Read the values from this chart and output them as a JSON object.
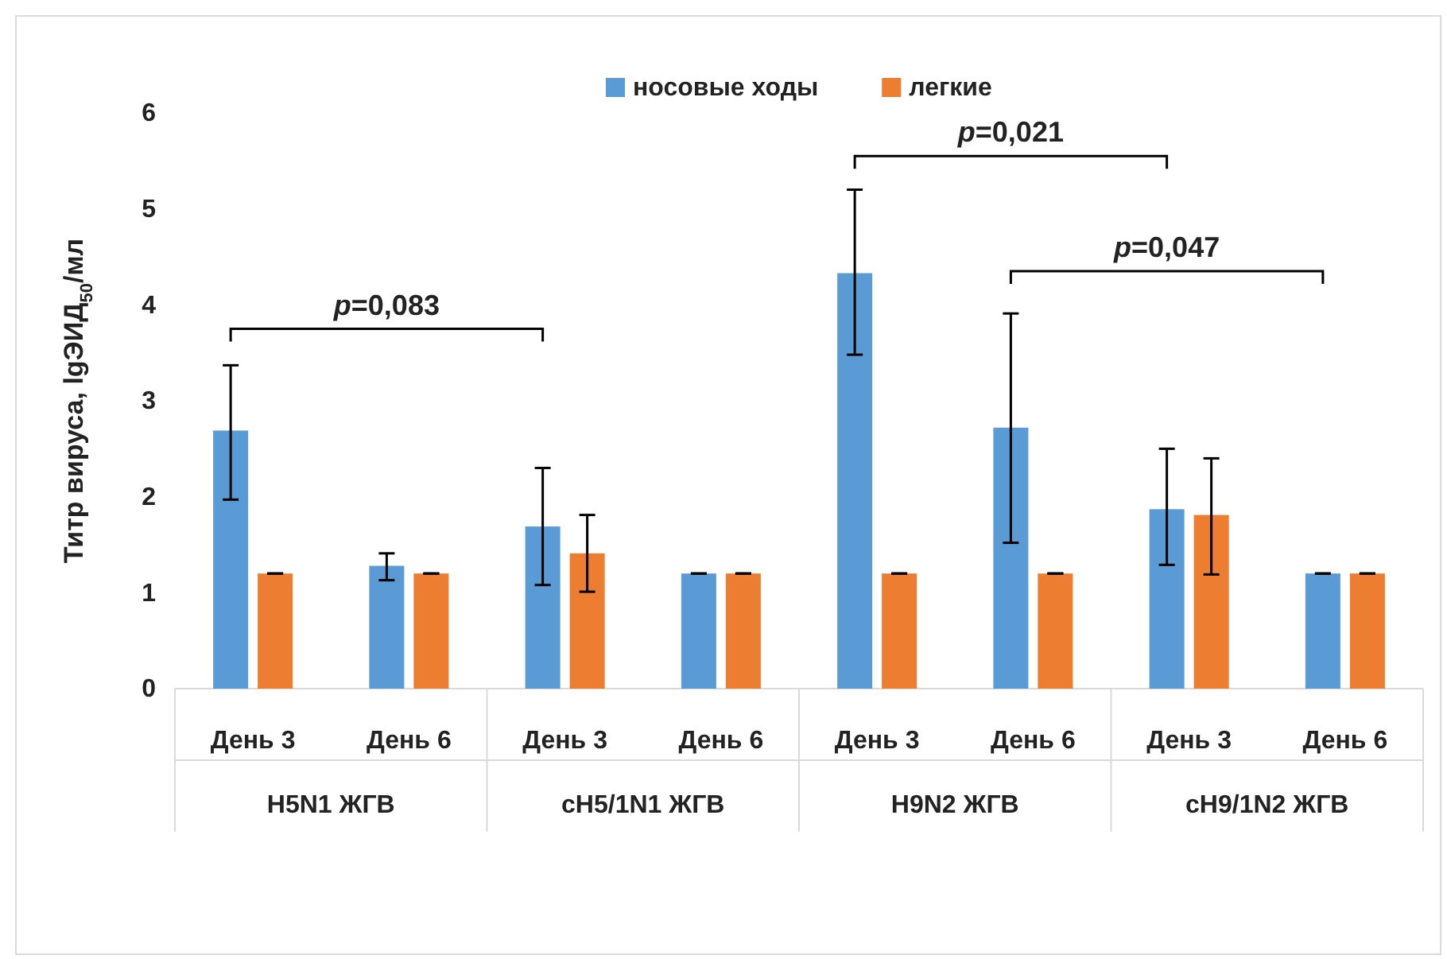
{
  "chart_data": {
    "type": "bar",
    "ylabel": "Титр вируса, lgЭИД$_{50}$/мл",
    "categories": [
      "День 3",
      "День 6",
      "День 3",
      "День 6",
      "День 3",
      "День 6",
      "День 3",
      "День 6"
    ],
    "series": [
      {
        "name": "носовые ходы",
        "color": "#5b9bd5",
        "values": [
          2.69,
          1.28,
          1.69,
          1.2,
          4.33,
          2.72,
          1.87,
          1.2
        ],
        "errors": [
          [
            1.97,
            3.37
          ],
          [
            1.13,
            1.41
          ],
          [
            1.08,
            2.3
          ],
          0,
          [
            3.48,
            5.2
          ],
          [
            1.52,
            3.91
          ],
          [
            1.29,
            2.5
          ],
          0
        ]
      },
      {
        "name": "легкие",
        "color": "#ed7d31",
        "values": [
          1.2,
          1.2,
          1.41,
          1.2,
          1.2,
          1.2,
          1.81,
          1.2
        ],
        "errors": [
          0,
          0,
          [
            1.01,
            1.81
          ],
          0,
          0,
          0,
          [
            1.19,
            2.4
          ],
          0
        ]
      }
    ],
    "ylim": [
      0,
      6
    ],
    "yticks": [
      0,
      1,
      2,
      3,
      4,
      5,
      6
    ],
    "grid": false,
    "legend": "top",
    "annotations": [
      "H5N1 ЖГВ",
      "cH5/1N1 ЖГВ",
      "H9N2 ЖГВ",
      "cH9/1N2 ЖГВ",
      "p=0,083",
      "p=0,021",
      "p=0,047"
    ]
  }
}
